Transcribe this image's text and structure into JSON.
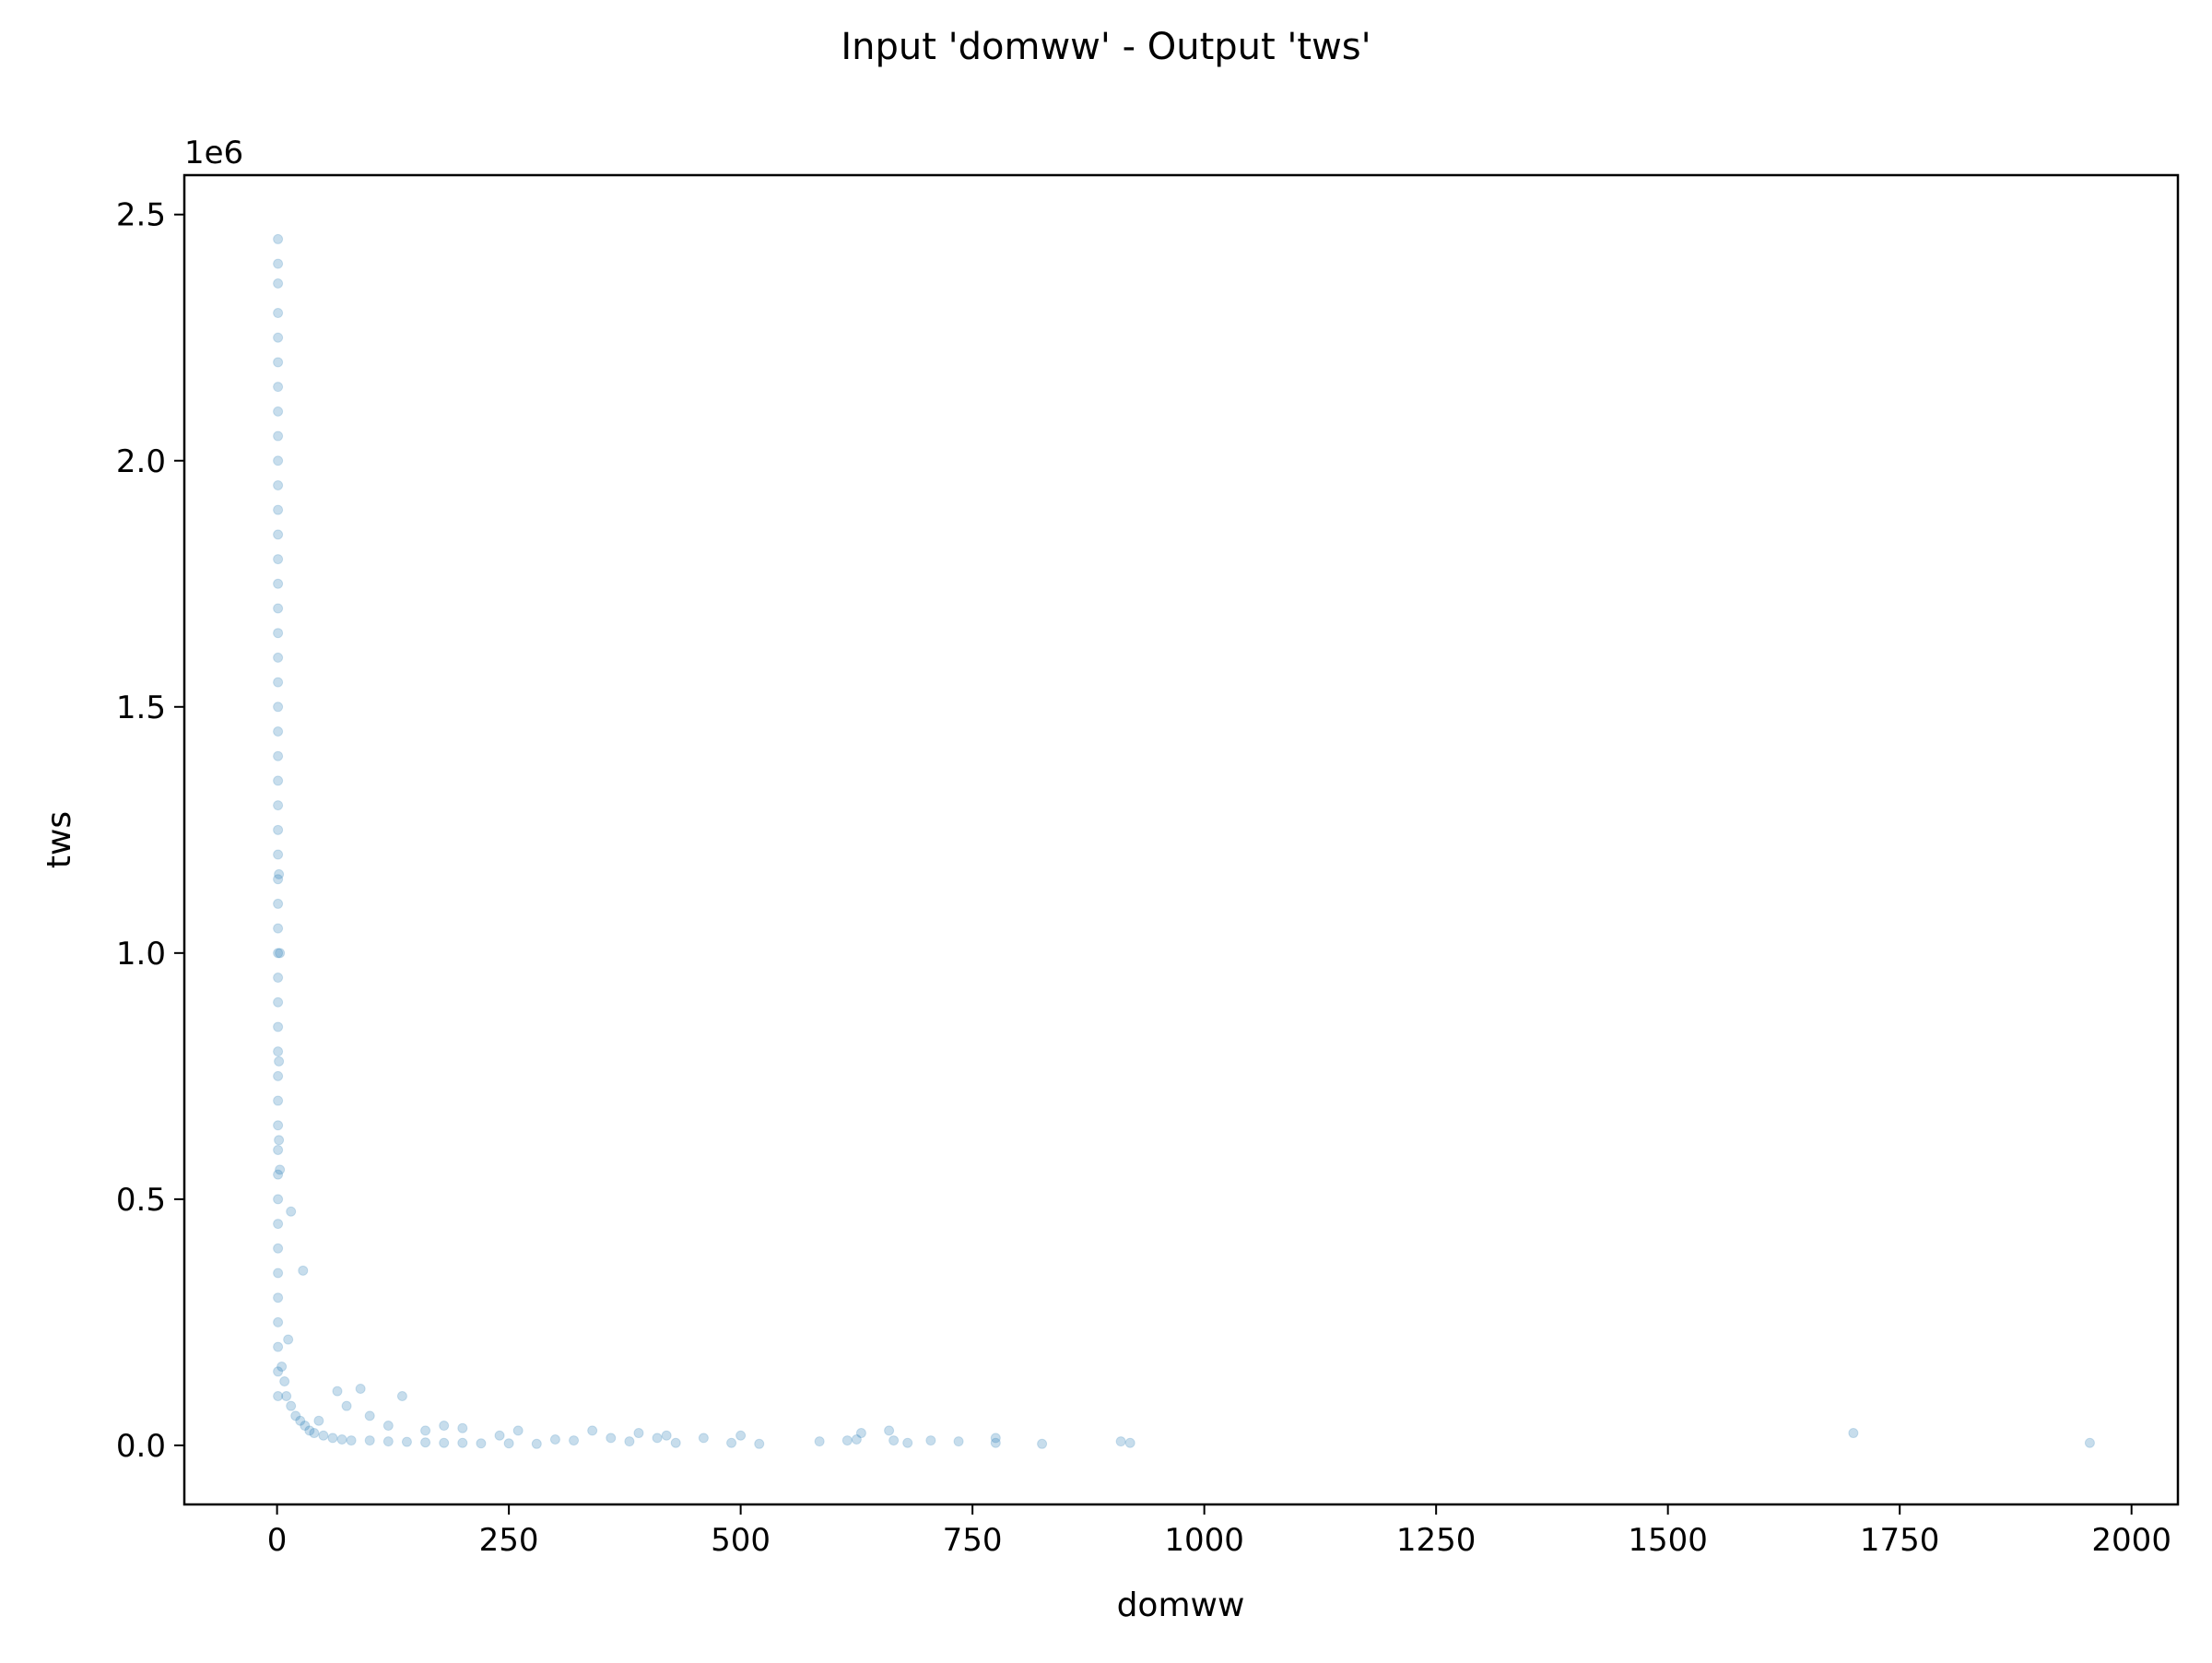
{
  "chart_data": {
    "type": "scatter",
    "title": "Input 'domww' - Output 'tws'",
    "xlabel": "domww",
    "ylabel": "tws",
    "y_offset_label": "1e6",
    "xlim": [
      -100,
      2050
    ],
    "ylim": [
      -120000,
      2580000
    ],
    "x_ticks": [
      0,
      250,
      500,
      750,
      1000,
      1250,
      1500,
      1750,
      2000
    ],
    "x_tick_labels": [
      "0",
      "250",
      "500",
      "750",
      "1000",
      "1250",
      "1500",
      "1750",
      "2000"
    ],
    "y_ticks": [
      0,
      500000,
      1000000,
      1500000,
      2000000,
      2500000
    ],
    "y_tick_labels": [
      "0.0",
      "0.5",
      "1.0",
      "1.5",
      "2.0",
      "2.5"
    ],
    "grid": false,
    "legend": false,
    "series": [
      {
        "color": "#1f77b4",
        "alpha": 0.25,
        "points": [
          [
            1,
            2450000
          ],
          [
            1,
            2400000
          ],
          [
            1,
            2360000
          ],
          [
            1,
            2300000
          ],
          [
            1,
            2250000
          ],
          [
            1,
            2200000
          ],
          [
            1,
            2150000
          ],
          [
            1,
            2100000
          ],
          [
            1,
            2050000
          ],
          [
            1,
            2000000
          ],
          [
            1,
            1950000
          ],
          [
            1,
            1900000
          ],
          [
            1,
            1850000
          ],
          [
            1,
            1800000
          ],
          [
            1,
            1750000
          ],
          [
            1,
            1700000
          ],
          [
            1,
            1650000
          ],
          [
            1,
            1600000
          ],
          [
            1,
            1550000
          ],
          [
            1,
            1500000
          ],
          [
            1,
            1450000
          ],
          [
            1,
            1400000
          ],
          [
            1,
            1350000
          ],
          [
            1,
            1300000
          ],
          [
            1,
            1250000
          ],
          [
            1,
            1200000
          ],
          [
            1,
            1150000
          ],
          [
            1,
            1100000
          ],
          [
            1,
            1050000
          ],
          [
            1,
            1000000
          ],
          [
            1,
            950000
          ],
          [
            1,
            900000
          ],
          [
            1,
            850000
          ],
          [
            1,
            800000
          ],
          [
            1,
            750000
          ],
          [
            1,
            700000
          ],
          [
            1,
            650000
          ],
          [
            1,
            600000
          ],
          [
            1,
            550000
          ],
          [
            1,
            500000
          ],
          [
            1,
            450000
          ],
          [
            1,
            400000
          ],
          [
            1,
            350000
          ],
          [
            1,
            300000
          ],
          [
            1,
            250000
          ],
          [
            1,
            200000
          ],
          [
            1,
            150000
          ],
          [
            1,
            100000
          ],
          [
            2,
            1160000
          ],
          [
            3,
            1000000
          ],
          [
            2,
            780000
          ],
          [
            2,
            620000
          ],
          [
            3,
            560000
          ],
          [
            15,
            475000
          ],
          [
            28,
            355000
          ],
          [
            12,
            215000
          ],
          [
            5,
            160000
          ],
          [
            8,
            130000
          ],
          [
            10,
            100000
          ],
          [
            15,
            80000
          ],
          [
            20,
            60000
          ],
          [
            25,
            50000
          ],
          [
            30,
            40000
          ],
          [
            35,
            30000
          ],
          [
            40,
            25000
          ],
          [
            50,
            20000
          ],
          [
            60,
            15000
          ],
          [
            70,
            12000
          ],
          [
            80,
            10000
          ],
          [
            100,
            10000
          ],
          [
            120,
            8000
          ],
          [
            140,
            7000
          ],
          [
            160,
            6000
          ],
          [
            180,
            5000
          ],
          [
            200,
            5000
          ],
          [
            220,
            4000
          ],
          [
            250,
            4000
          ],
          [
            280,
            3000
          ],
          [
            65,
            110000
          ],
          [
            90,
            115000
          ],
          [
            75,
            80000
          ],
          [
            100,
            60000
          ],
          [
            135,
            100000
          ],
          [
            45,
            50000
          ],
          [
            120,
            40000
          ],
          [
            160,
            30000
          ],
          [
            180,
            40000
          ],
          [
            200,
            35000
          ],
          [
            240,
            20000
          ],
          [
            260,
            30000
          ],
          [
            300,
            12000
          ],
          [
            320,
            10000
          ],
          [
            340,
            30000
          ],
          [
            360,
            15000
          ],
          [
            380,
            8000
          ],
          [
            390,
            25000
          ],
          [
            410,
            15000
          ],
          [
            420,
            20000
          ],
          [
            430,
            5000
          ],
          [
            460,
            15000
          ],
          [
            490,
            5000
          ],
          [
            500,
            20000
          ],
          [
            520,
            3000
          ],
          [
            585,
            8000
          ],
          [
            615,
            10000
          ],
          [
            625,
            12000
          ],
          [
            630,
            25000
          ],
          [
            660,
            30000
          ],
          [
            665,
            10000
          ],
          [
            680,
            5000
          ],
          [
            705,
            10000
          ],
          [
            735,
            8000
          ],
          [
            775,
            5000
          ],
          [
            775,
            15000
          ],
          [
            825,
            3000
          ],
          [
            910,
            8000
          ],
          [
            920,
            5000
          ],
          [
            1700,
            25000
          ],
          [
            1955,
            5000
          ]
        ]
      }
    ]
  }
}
